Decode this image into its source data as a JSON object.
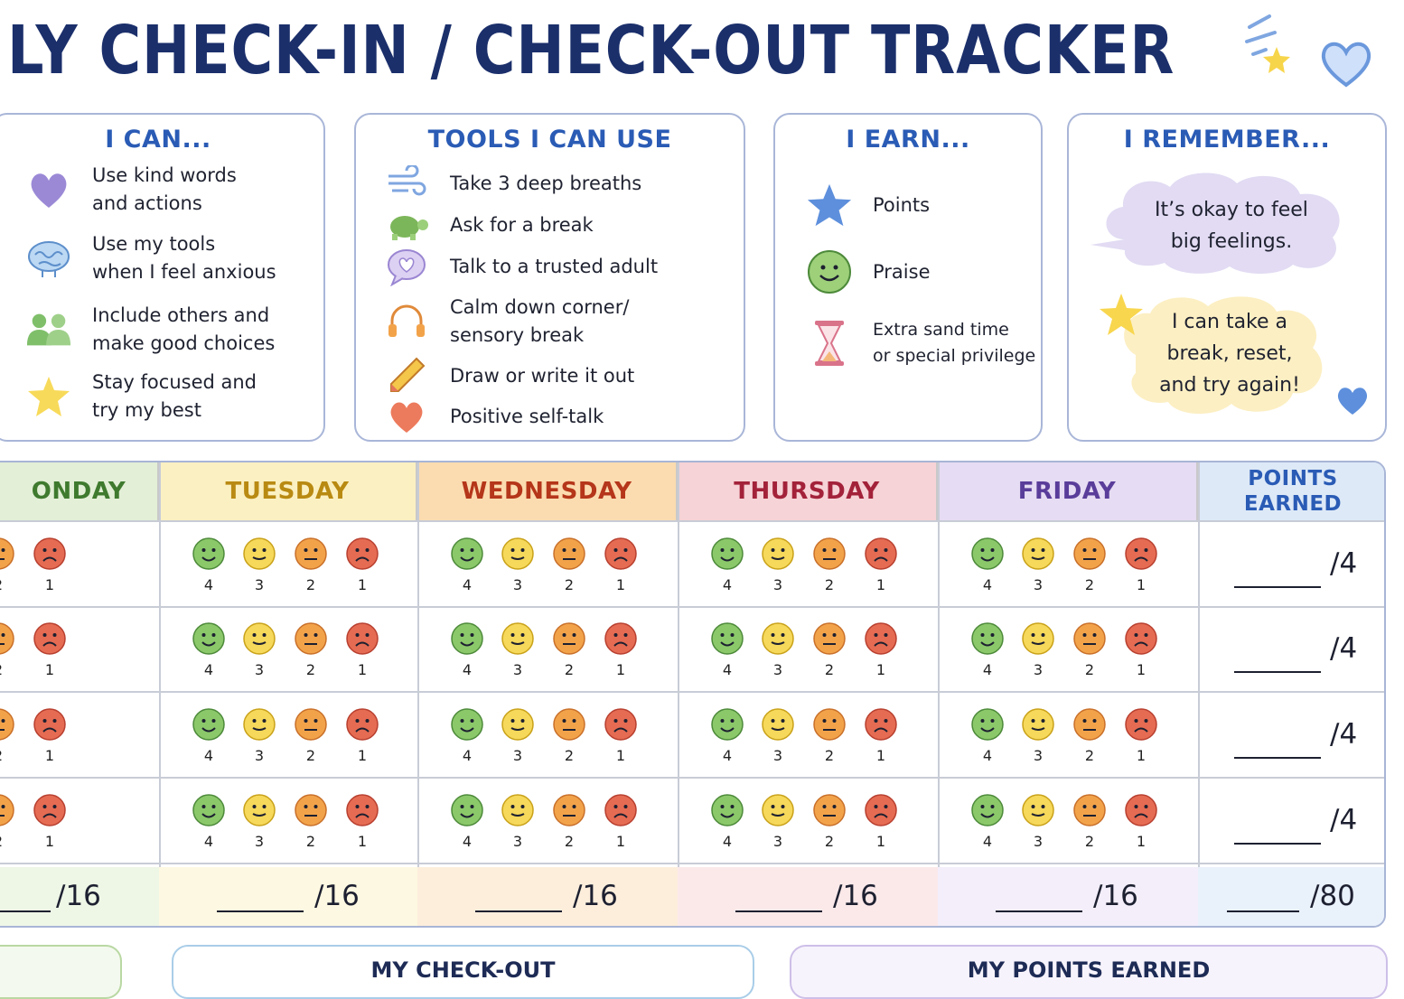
{
  "title": "LY CHECK-IN / CHECK-OUT TRACKER",
  "cards": {
    "can": {
      "title": "I CAN...",
      "items": [
        {
          "icon": "heart-icon",
          "lines": [
            "Use kind words",
            "and actions"
          ]
        },
        {
          "icon": "brain-icon",
          "lines": [
            "Use my tools",
            "when I feel anxious"
          ]
        },
        {
          "icon": "people-icon",
          "lines": [
            "Include others and",
            "make good choices"
          ]
        },
        {
          "icon": "star-icon",
          "lines": [
            "Stay focused and",
            "try my best"
          ]
        }
      ]
    },
    "tools": {
      "title": "TOOLS I CAN USE",
      "items": [
        {
          "icon": "wind-icon",
          "label": "Take 3 deep breaths"
        },
        {
          "icon": "turtle-icon",
          "label": "Ask for a break"
        },
        {
          "icon": "speech-heart-icon",
          "label": "Talk to a trusted adult"
        },
        {
          "icon": "headphones-icon",
          "lines": [
            "Calm down corner/",
            "sensory break"
          ]
        },
        {
          "icon": "pencil-icon",
          "label": "Draw or write it out"
        },
        {
          "icon": "heart-icon",
          "label": "Positive self-talk"
        }
      ]
    },
    "earn": {
      "title": "I EARN...",
      "items": [
        {
          "icon": "star-icon",
          "label": "Points"
        },
        {
          "icon": "smiley-icon",
          "label": "Praise"
        },
        {
          "icon": "hourglass-icon",
          "lines": [
            "Extra sand time",
            "or special privilege"
          ]
        }
      ]
    },
    "remember": {
      "title": "I REMEMBER...",
      "bubble1": [
        "It’s okay to feel",
        "big feelings."
      ],
      "bubble2": [
        "I can take a",
        "break, reset,",
        "and try again!"
      ]
    }
  },
  "table": {
    "headers": [
      "ONDAY",
      "TUESDAY",
      "WEDNESDAY",
      "THURSDAY",
      "FRIDAY"
    ],
    "points_header": [
      "POINTS",
      "EARNED"
    ],
    "scale": [
      "4",
      "3",
      "2",
      "1"
    ],
    "row_points": [
      "/4",
      "/4",
      "/4",
      "/4"
    ],
    "day_totals": [
      "/16",
      "/16",
      "/16",
      "/16",
      "/16"
    ],
    "grand_total": "/80"
  },
  "colors": {
    "mon": "#e3efd6",
    "tue": "#fbf0c2",
    "wed": "#fbdcb0",
    "thu": "#f6d3d6",
    "fri": "#e6dcf3",
    "points": "#dde9f7",
    "face4": "#8bc86a",
    "face3": "#f6d85a",
    "face2": "#f2a34a",
    "face1": "#e56b52"
  },
  "bottom": {
    "checkout": "MY CHECK-OUT",
    "points": "MY POINTS EARNED"
  }
}
